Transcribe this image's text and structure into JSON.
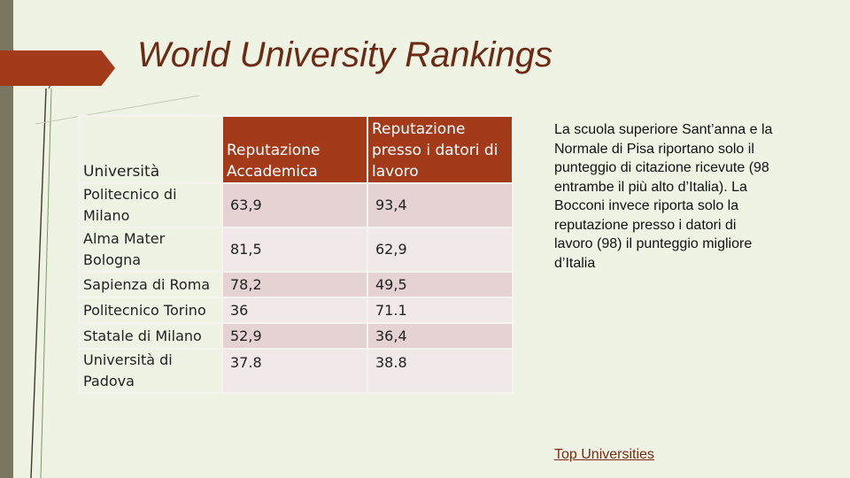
{
  "slide": {
    "title": "World University Rankings",
    "table": {
      "headers": [
        "Università",
        "Reputazione Accademica",
        "Reputazione presso i datori di lavoro"
      ],
      "rows": [
        [
          "Politecnico di Milano",
          "63,9",
          "93,4"
        ],
        [
          "Alma Mater Bologna",
          "81,5",
          "62,9"
        ],
        [
          "Sapienza di Roma",
          "78,2",
          "49,5"
        ],
        [
          "Politecnico Torino",
          "36",
          "71.1"
        ],
        [
          "Statale di Milano",
          "52,9",
          "36,4"
        ],
        [
          "Università di Padova",
          "37.8",
          "38.8"
        ]
      ]
    },
    "note": "La scuola superiore Sant’anna e la Normale di Pisa riportano solo il punteggio di citazione ricevute (98 entrambe il più alto d’Italia). La Bocconi invece riporta solo la reputazione presso i datori di lavoro (98) il punteggio migliore d’Italia",
    "link": "Top Universities",
    "colors": {
      "background": "#eff3e3",
      "accent": "#a33a1a",
      "sidebar": "#7b7660",
      "cell_pink": "#e5d2d2"
    }
  }
}
